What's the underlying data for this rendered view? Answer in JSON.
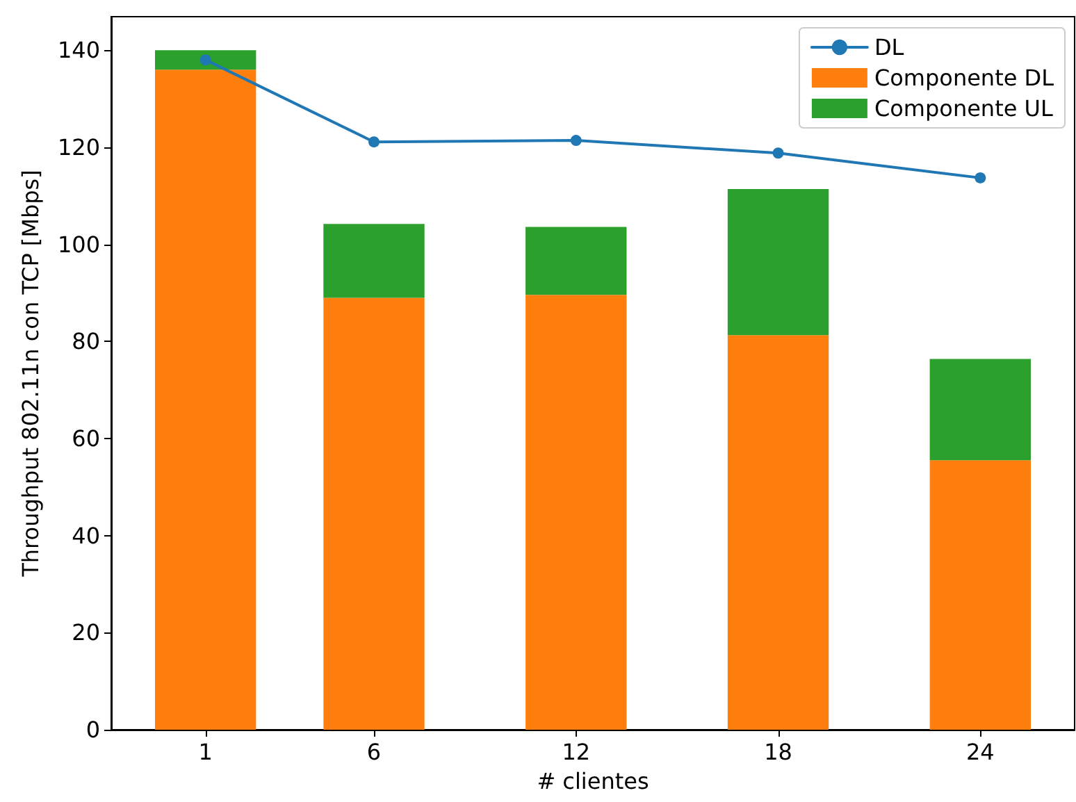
{
  "chart_data": {
    "type": "bar",
    "xlabel": "# clientes",
    "ylabel": "Throughput 802.11n con TCP [Mbps]",
    "x": [
      1,
      6,
      12,
      18,
      24
    ],
    "stacked": true,
    "series": [
      {
        "name": "DL",
        "type": "line",
        "color": "#1f77b4",
        "values": [
          138.0,
          121.1,
          121.4,
          118.8,
          113.7
        ],
        "marker": "circle",
        "line_style": "solid"
      },
      {
        "name": "Componente DL",
        "color": "#ff7f0e",
        "values": [
          136.0,
          89.0,
          89.6,
          81.3,
          55.5
        ]
      },
      {
        "name": "Componente UL",
        "color": "#2ca02c",
        "values": [
          4.0,
          15.2,
          14.0,
          30.1,
          20.9
        ]
      }
    ],
    "xlim": [
      -1.8,
      26.8
    ],
    "xticks": [
      1,
      6,
      12,
      18,
      24
    ],
    "ylim": [
      0,
      146.9
    ],
    "yticks": [
      0,
      20,
      40,
      60,
      80,
      100,
      120,
      140
    ],
    "grid": false,
    "legend": "top right"
  }
}
